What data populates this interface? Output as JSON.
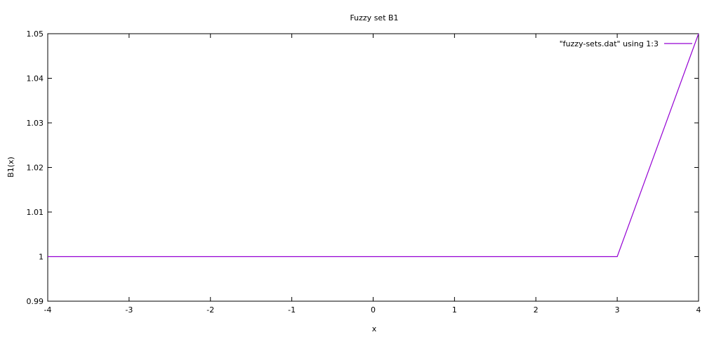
{
  "chart_data": {
    "type": "line",
    "title": "Fuzzy set B1",
    "xlabel": "x",
    "ylabel": "B1(x)",
    "xlim": [
      -4,
      4
    ],
    "ylim": [
      0.99,
      1.05
    ],
    "x_ticks": [
      -4,
      -3,
      -2,
      -1,
      0,
      1,
      2,
      3,
      4
    ],
    "x_tick_labels": [
      "-4",
      "-3",
      "-2",
      "-1",
      "0",
      "1",
      "2",
      "3",
      "4"
    ],
    "y_ticks": [
      0.99,
      1,
      1.01,
      1.02,
      1.03,
      1.04,
      1.05
    ],
    "y_tick_labels": [
      "0.99",
      "1",
      "1.01",
      "1.02",
      "1.03",
      "1.04",
      "1.05"
    ],
    "grid": false,
    "legend": {
      "placement": "top-right"
    },
    "series": [
      {
        "name": "\"fuzzy-sets.dat\" using 1:3",
        "color": "#9400d3",
        "x": [
          -4,
          3,
          4
        ],
        "y": [
          1,
          1,
          1.05
        ]
      }
    ]
  }
}
